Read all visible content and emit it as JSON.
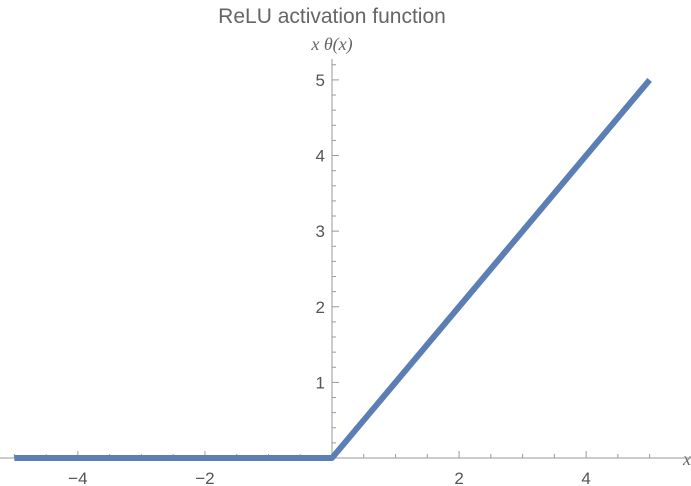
{
  "chart_data": {
    "type": "line",
    "title": "ReLU activation function",
    "xlabel": "x",
    "ylabel": "x θ(x)",
    "xlim": [
      -5.1,
      5.1
    ],
    "ylim": [
      0,
      5.25
    ],
    "x_ticks": [
      -4,
      -2,
      2,
      4
    ],
    "x_tick_labels": [
      "−4",
      "−2",
      "2",
      "4"
    ],
    "y_ticks": [
      1,
      2,
      3,
      4,
      5
    ],
    "y_tick_labels": [
      "1",
      "2",
      "3",
      "4",
      "5"
    ],
    "x_minor_step": 0.5,
    "y_minor_step": 0.2,
    "grid": false,
    "series": [
      {
        "color": "#5b7fb4",
        "points": [
          [
            -5,
            0
          ],
          [
            0,
            0
          ],
          [
            5,
            5
          ]
        ]
      }
    ]
  }
}
